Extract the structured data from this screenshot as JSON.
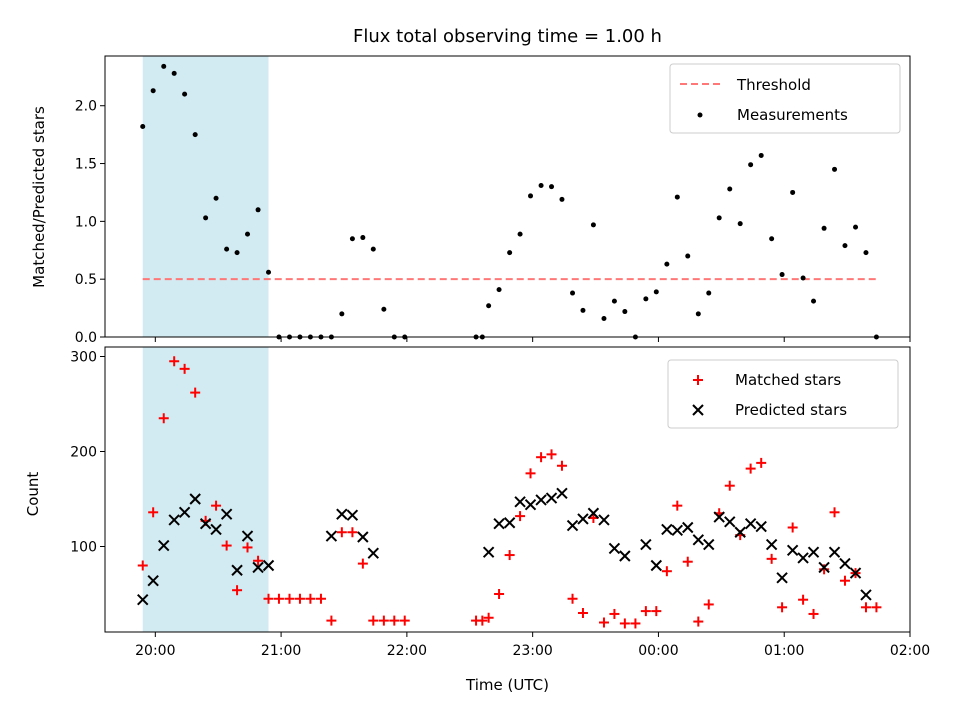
{
  "chart_data": [
    {
      "type": "scatter",
      "title": "Flux total observing time = 1.00 h",
      "xlabel": "",
      "ylabel": "Matched/Predicted stars",
      "xlim": [
        -0.4,
        6.0
      ],
      "ylim": [
        0,
        2.43
      ],
      "xticks": [
        0,
        1,
        2,
        3,
        4,
        5,
        6
      ],
      "yticks": [
        0.0,
        0.5,
        1.0,
        1.5,
        2.0
      ],
      "ytick_labels": [
        "0.0",
        "0.5",
        "1.0",
        "1.5",
        "2.0"
      ],
      "shaded_region": {
        "x0": -0.1,
        "x1": 0.9,
        "color": "#add8e6"
      },
      "legend_position": "upper-right",
      "series": [
        {
          "name": "Threshold",
          "kind": "line",
          "style": "dashed",
          "color": "#ff7777",
          "x": [
            -0.1,
            5.73
          ],
          "y": [
            0.5,
            0.5
          ]
        },
        {
          "name": "Measurements",
          "kind": "scatter",
          "marker": "dot",
          "color": "#000000",
          "x": [
            -0.1,
            -0.017,
            0.067,
            0.15,
            0.233,
            0.317,
            0.4,
            0.483,
            0.567,
            0.65,
            0.733,
            0.817,
            0.9,
            0.983,
            1.067,
            1.15,
            1.233,
            1.317,
            1.4,
            1.483,
            1.567,
            1.65,
            1.733,
            1.817,
            1.9,
            1.983,
            2.55,
            2.6,
            2.65,
            2.733,
            2.817,
            2.9,
            2.983,
            3.067,
            3.15,
            3.233,
            3.317,
            3.4,
            3.483,
            3.567,
            3.65,
            3.733,
            3.817,
            3.9,
            3.983,
            4.067,
            4.15,
            4.233,
            4.317,
            4.4,
            4.483,
            4.567,
            4.65,
            4.733,
            4.817,
            4.9,
            4.983,
            5.067,
            5.15,
            5.233,
            5.317,
            5.4,
            5.483,
            5.567,
            5.65,
            5.733
          ],
          "y": [
            1.82,
            2.13,
            2.34,
            2.28,
            2.1,
            1.75,
            1.03,
            1.2,
            0.76,
            0.73,
            0.89,
            1.1,
            0.56,
            0.0,
            0.0,
            0.0,
            0.0,
            0.0,
            0.0,
            0.2,
            0.85,
            0.86,
            0.76,
            0.24,
            0.0,
            0.0,
            0.0,
            0.0,
            0.27,
            0.41,
            0.73,
            0.89,
            1.22,
            1.31,
            1.3,
            1.19,
            0.38,
            0.23,
            0.97,
            0.16,
            0.31,
            0.22,
            0.0,
            0.33,
            0.39,
            0.63,
            1.21,
            0.7,
            0.2,
            0.38,
            1.03,
            1.28,
            0.98,
            1.49,
            1.57,
            0.85,
            0.54,
            1.25,
            0.51,
            0.31,
            0.94,
            1.45,
            0.79,
            0.95,
            0.73,
            0.0
          ]
        }
      ]
    },
    {
      "type": "scatter",
      "title": "",
      "xlabel": "Time (UTC)",
      "ylabel": "Count",
      "xlim": [
        -0.4,
        6.0
      ],
      "ylim": [
        10,
        310
      ],
      "xticks": [
        0,
        1,
        2,
        3,
        4,
        5,
        6
      ],
      "xtick_labels": [
        "20:00",
        "21:00",
        "22:00",
        "23:00",
        "00:00",
        "01:00",
        "02:00"
      ],
      "yticks": [
        100,
        200,
        300
      ],
      "ytick_labels": [
        "100",
        "200",
        "300"
      ],
      "shaded_region": {
        "x0": -0.1,
        "x1": 0.9,
        "color": "#add8e6"
      },
      "legend_position": "upper-right",
      "series": [
        {
          "name": "Matched stars",
          "kind": "scatter",
          "marker": "plus",
          "color": "#ff0000",
          "x": [
            -0.1,
            -0.017,
            0.067,
            0.15,
            0.233,
            0.317,
            0.4,
            0.483,
            0.567,
            0.65,
            0.733,
            0.817,
            0.9,
            0.983,
            1.067,
            1.15,
            1.233,
            1.317,
            1.4,
            1.483,
            1.567,
            1.65,
            1.733,
            1.817,
            1.9,
            1.983,
            2.55,
            2.6,
            2.65,
            2.733,
            2.817,
            2.9,
            2.983,
            3.067,
            3.15,
            3.233,
            3.317,
            3.4,
            3.483,
            3.567,
            3.65,
            3.733,
            3.817,
            3.9,
            3.983,
            4.067,
            4.15,
            4.233,
            4.317,
            4.4,
            4.483,
            4.567,
            4.65,
            4.733,
            4.817,
            4.9,
            4.983,
            5.067,
            5.15,
            5.233,
            5.317,
            5.4,
            5.483,
            5.567,
            5.65,
            5.733
          ],
          "y": [
            80,
            136,
            235,
            295,
            287,
            262,
            127,
            143,
            101,
            54,
            99,
            85,
            45,
            45,
            45,
            45,
            45,
            45,
            22,
            115,
            115,
            82,
            22,
            22,
            22,
            22,
            22,
            22,
            25,
            50,
            91,
            132,
            177,
            194,
            197,
            185,
            45,
            30,
            130,
            20,
            29,
            19,
            19,
            32,
            32,
            74,
            143,
            84,
            21,
            39,
            135,
            164,
            112,
            182,
            188,
            87,
            36,
            120,
            44,
            29,
            76,
            136,
            64,
            72,
            36,
            36
          ]
        },
        {
          "name": "Predicted stars",
          "kind": "scatter",
          "marker": "x",
          "color": "#000000",
          "x": [
            -0.1,
            -0.017,
            0.067,
            0.15,
            0.233,
            0.317,
            0.4,
            0.483,
            0.567,
            0.65,
            0.733,
            0.817,
            0.9,
            1.4,
            1.483,
            1.567,
            1.65,
            1.733,
            2.65,
            2.733,
            2.817,
            2.9,
            2.983,
            3.067,
            3.15,
            3.233,
            3.317,
            3.4,
            3.483,
            3.567,
            3.65,
            3.733,
            3.9,
            3.983,
            4.067,
            4.15,
            4.233,
            4.317,
            4.4,
            4.483,
            4.567,
            4.65,
            4.733,
            4.817,
            4.9,
            4.983,
            5.067,
            5.15,
            5.233,
            5.317,
            5.4,
            5.483,
            5.567,
            5.65
          ],
          "y": [
            44,
            64,
            101,
            128,
            136,
            150,
            124,
            118,
            134,
            75,
            111,
            78,
            80,
            111,
            134,
            133,
            110,
            93,
            94,
            124,
            125,
            147,
            144,
            149,
            151,
            156,
            122,
            129,
            135,
            128,
            98,
            90,
            102,
            80,
            118,
            117,
            120,
            107,
            102,
            131,
            126,
            115,
            124,
            121,
            102,
            67,
            96,
            88,
            94,
            78,
            94,
            82,
            72,
            49
          ]
        }
      ]
    }
  ]
}
